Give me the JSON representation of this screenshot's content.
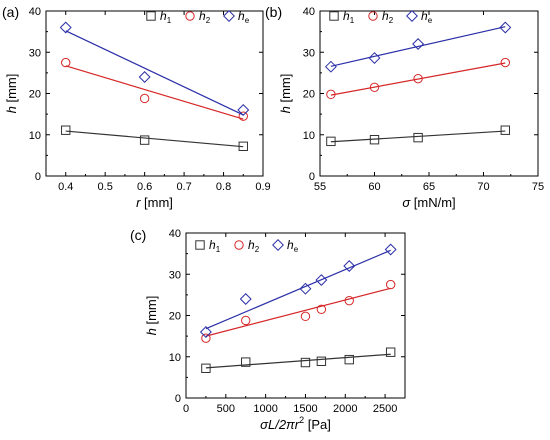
{
  "chart_data": [
    {
      "type": "scatter",
      "panel_label": "(a)",
      "xlabel": {
        "symbol": "r",
        "unit": " [mm]"
      },
      "ylabel": {
        "symbol": "h",
        "unit": " [mm]"
      },
      "xlim": [
        0.35,
        0.9
      ],
      "ylim": [
        0,
        40
      ],
      "xticks": [
        0.4,
        0.5,
        0.6,
        0.7,
        0.8,
        0.9
      ],
      "xtick_labels": [
        "0.4",
        "0.5",
        "0.6",
        "0.7",
        "0.8",
        "0.9"
      ],
      "yticks": [
        0,
        10,
        20,
        30,
        40
      ],
      "ytick_labels": [
        "0",
        "10",
        "20",
        "30",
        "40"
      ],
      "legend_position": "top-right",
      "series": [
        {
          "name": "h",
          "sub": "1",
          "marker": "square",
          "color": "#333333",
          "x": [
            0.4,
            0.6,
            0.85
          ],
          "y": [
            11.1,
            8.7,
            7.2
          ],
          "fit": [
            [
              0.4,
              10.9
            ],
            [
              0.85,
              7.1
            ]
          ]
        },
        {
          "name": "h",
          "sub": "2",
          "marker": "circle",
          "color": "#d62728",
          "x": [
            0.4,
            0.6,
            0.85
          ],
          "y": [
            27.5,
            18.8,
            14.5
          ],
          "fit": [
            [
              0.4,
              26.7
            ],
            [
              0.85,
              13.8
            ]
          ]
        },
        {
          "name": "h",
          "sub": "e",
          "marker": "diamond",
          "color": "#2b2fa8",
          "x": [
            0.4,
            0.6,
            0.85
          ],
          "y": [
            36.0,
            24.0,
            16.0
          ],
          "fit": [
            [
              0.4,
              35.2
            ],
            [
              0.85,
              14.8
            ]
          ]
        }
      ]
    },
    {
      "type": "scatter",
      "panel_label": "(b)",
      "xlabel": {
        "symbol": "σ",
        "unit": " [mN/m]"
      },
      "ylabel": {
        "symbol": "h",
        "unit": " [mm]"
      },
      "xlim": [
        55,
        75
      ],
      "ylim": [
        0,
        40
      ],
      "xticks": [
        55,
        60,
        65,
        70,
        75
      ],
      "xtick_labels": [
        "55",
        "60",
        "65",
        "70",
        "75"
      ],
      "yticks": [
        0,
        10,
        20,
        30,
        40
      ],
      "ytick_labels": [
        "0",
        "10",
        "20",
        "30",
        "40"
      ],
      "legend_position": "top-left",
      "series": [
        {
          "name": "h",
          "sub": "1",
          "marker": "square",
          "color": "#333333",
          "x": [
            56,
            60,
            64,
            72
          ],
          "y": [
            8.4,
            8.8,
            9.3,
            11.1
          ],
          "fit": [
            [
              56,
              8.3
            ],
            [
              72,
              10.9
            ]
          ]
        },
        {
          "name": "h",
          "sub": "2",
          "marker": "circle",
          "color": "#d62728",
          "x": [
            56,
            60,
            64,
            72
          ],
          "y": [
            19.8,
            21.5,
            23.6,
            27.5
          ],
          "fit": [
            [
              56,
              19.6
            ],
            [
              72,
              27.4
            ]
          ]
        },
        {
          "name": "h",
          "sub": "e",
          "marker": "diamond",
          "color": "#2b2fa8",
          "x": [
            56,
            60,
            64,
            72
          ],
          "y": [
            26.5,
            28.6,
            32.0,
            36.0
          ],
          "fit": [
            [
              56,
              26.6
            ],
            [
              72,
              36.2
            ]
          ]
        }
      ]
    },
    {
      "type": "scatter",
      "panel_label": "(c)",
      "xlabel": {
        "symbol": "σL/2πr",
        "sup": "2",
        "unit": " [Pa]"
      },
      "ylabel": {
        "symbol": "h",
        "unit": " [mm]"
      },
      "xlim": [
        0,
        2750
      ],
      "ylim": [
        0,
        40
      ],
      "xticks": [
        0,
        500,
        1000,
        1500,
        2000,
        2500
      ],
      "xtick_labels": [
        "0",
        "500",
        "1000",
        "1500",
        "2000",
        "2500"
      ],
      "yticks": [
        0,
        10,
        20,
        30,
        40
      ],
      "ytick_labels": [
        "0",
        "10",
        "20",
        "30",
        "40"
      ],
      "legend_position": "top-left",
      "series": [
        {
          "name": "h",
          "sub": "1",
          "marker": "square",
          "color": "#333333",
          "x": [
            250,
            750,
            1500,
            1700,
            2050,
            2570
          ],
          "y": [
            7.2,
            8.7,
            8.6,
            8.9,
            9.3,
            11.1
          ],
          "fit": [
            [
              250,
              7.3
            ],
            [
              2570,
              10.6
            ]
          ]
        },
        {
          "name": "h",
          "sub": "2",
          "marker": "circle",
          "color": "#d62728",
          "x": [
            250,
            750,
            1500,
            1700,
            2050,
            2570
          ],
          "y": [
            14.5,
            18.8,
            19.8,
            21.5,
            23.6,
            27.5
          ],
          "fit": [
            [
              250,
              15.0
            ],
            [
              2570,
              26.6
            ]
          ]
        },
        {
          "name": "h",
          "sub": "e",
          "marker": "diamond",
          "color": "#2b2fa8",
          "x": [
            250,
            750,
            1500,
            1700,
            2050,
            2570
          ],
          "y": [
            16.0,
            24.0,
            26.5,
            28.6,
            32.0,
            36.0
          ],
          "fit": [
            [
              250,
              16.8
            ],
            [
              2570,
              35.8
            ]
          ]
        }
      ]
    }
  ]
}
